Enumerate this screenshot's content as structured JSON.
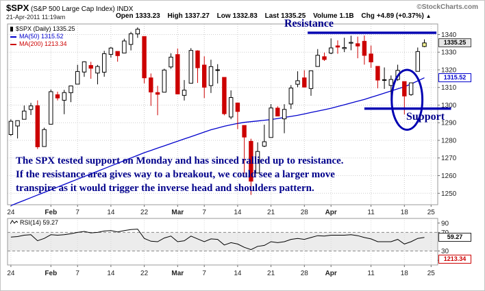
{
  "header": {
    "symbol": "$SPX",
    "description": "(S&P 500 Large Cap Index)",
    "exchange": "INDX",
    "credit": "©StockCharts.com",
    "timestamp": "21-Apr-2011 11:19am"
  },
  "quote": {
    "open_label": "Open",
    "open_value": "1333.23",
    "high_label": "High",
    "high_value": "1337.27",
    "low_label": "Low",
    "low_value": "1332.83",
    "last_label": "Last",
    "last_value": "1335.25",
    "volume_label": "Volume",
    "volume_value": "1.1B",
    "chg_label": "Chg",
    "chg_value": "+4.89 (+0.37%)",
    "chg_arrow": "▲"
  },
  "legend": {
    "spx": "$SPX (Daily) 1335.25",
    "ma50": "MA(50) 1315.52",
    "ma200": "MA(200) 1213.34"
  },
  "rsi_legend": {
    "text": "RSI(14) 59.27"
  },
  "price_labels": {
    "last": "1335.25",
    "ma50": "1315.52",
    "rsi": "59.27",
    "ma200": "1213.34"
  },
  "axes": {
    "price_ticks": [
      1340,
      1330,
      1320,
      1310,
      1300,
      1290,
      1280,
      1270,
      1260,
      1250
    ],
    "rsi_ticks": [
      90,
      70,
      30,
      10
    ],
    "x_ticks": [
      {
        "label": "24",
        "bar": 0,
        "bold": false
      },
      {
        "label": "Feb",
        "bar": 6,
        "bold": true
      },
      {
        "label": "7",
        "bar": 10,
        "bold": false
      },
      {
        "label": "14",
        "bar": 15,
        "bold": false
      },
      {
        "label": "22",
        "bar": 20,
        "bold": false
      },
      {
        "label": "Mar",
        "bar": 25,
        "bold": true
      },
      {
        "label": "7",
        "bar": 29,
        "bold": false
      },
      {
        "label": "14",
        "bar": 34,
        "bold": false
      },
      {
        "label": "21",
        "bar": 39,
        "bold": false
      },
      {
        "label": "28",
        "bar": 44,
        "bold": false
      },
      {
        "label": "Apr",
        "bar": 48,
        "bold": true
      },
      {
        "label": "11",
        "bar": 54,
        "bold": false
      },
      {
        "label": "18",
        "bar": 59,
        "bold": false
      },
      {
        "label": "25",
        "bar": 63,
        "bold": false
      }
    ]
  },
  "annotations": {
    "resistance_label": "Resistance",
    "support_label": "Support",
    "note_lines": [
      "The SPX tested support on Monday and has sinced rallied up to resistance.",
      "If the resistance area gives way to a breakout, we could see a larger move",
      "transpire as it would trigger the inverse head and shoulders pattern."
    ],
    "color": "#00008b",
    "line_color": "#0000b2",
    "resistance_line": {
      "price": 1341,
      "x1_bar": 45,
      "x2_bar": 64.3
    },
    "support_line": {
      "price": 1298,
      "x1_bar": 53.5,
      "x2_bar": 66.5
    },
    "ellipse": {
      "bar": 59.9,
      "price": 1303,
      "rx_bars": 2.3,
      "ry_points": 17
    }
  },
  "chart_data": {
    "type": "candlestick",
    "symbol": "$SPX",
    "timeframe": "Daily",
    "title": "$SPX (S&P 500 Large Cap Index) INDX",
    "price_domain": [
      1243.5,
      1346
    ],
    "x_domain_bars": 64.5,
    "rsi_domain": [
      0,
      100
    ],
    "legend_position": "top-left",
    "grid": true,
    "colors": {
      "up": "#000000",
      "up_fill": "#ffffff",
      "down": "#cc0000",
      "ma50": "#0000cc",
      "ma200": "#cc0000",
      "rsi": "#000000"
    },
    "last_candle_fill": "#ffff99",
    "dates": [
      "Jan 24",
      "Jan 25",
      "Jan 26",
      "Jan 27",
      "Jan 28",
      "Jan 31",
      "Feb 1",
      "Feb 2",
      "Feb 3",
      "Feb 4",
      "Feb 7",
      "Feb 8",
      "Feb 9",
      "Feb 10",
      "Feb 11",
      "Feb 14",
      "Feb 15",
      "Feb 16",
      "Feb 17",
      "Feb 18",
      "Feb 22",
      "Feb 23",
      "Feb 24",
      "Feb 25",
      "Feb 28",
      "Mar 1",
      "Mar 2",
      "Mar 3",
      "Mar 4",
      "Mar 7",
      "Mar 8",
      "Mar 9",
      "Mar 10",
      "Mar 11",
      "Mar 14",
      "Mar 15",
      "Mar 16",
      "Mar 17",
      "Mar 18",
      "Mar 21",
      "Mar 22",
      "Mar 23",
      "Mar 24",
      "Mar 25",
      "Mar 28",
      "Mar 29",
      "Mar 30",
      "Mar 31",
      "Apr 1",
      "Apr 4",
      "Apr 5",
      "Apr 6",
      "Apr 7",
      "Apr 8",
      "Apr 11",
      "Apr 12",
      "Apr 13",
      "Apr 14",
      "Apr 15",
      "Apr 18",
      "Apr 19",
      "Apr 20",
      "Apr 21"
    ],
    "candles": [
      [
        1283.29,
        1291.93,
        1282.47,
        1290.84
      ],
      [
        1288.17,
        1291.26,
        1281.07,
        1291.18
      ],
      [
        1291.97,
        1299.74,
        1291.97,
        1296.63
      ],
      [
        1297.51,
        1301.29,
        1294.41,
        1299.54
      ],
      [
        1299.63,
        1302.67,
        1275.1,
        1276.34
      ],
      [
        1276.5,
        1287.17,
        1276.5,
        1286.12
      ],
      [
        1289.14,
        1308.86,
        1289.14,
        1307.59
      ],
      [
        1305.91,
        1307.61,
        1302.62,
        1304.03
      ],
      [
        1302.77,
        1308.6,
        1294.83,
        1307.1
      ],
      [
        1307.01,
        1311.0,
        1301.67,
        1310.87
      ],
      [
        1311.85,
        1322.85,
        1311.85,
        1319.05
      ],
      [
        1318.76,
        1324.87,
        1316.03,
        1324.57
      ],
      [
        1322.48,
        1324.54,
        1314.89,
        1320.88
      ],
      [
        1318.13,
        1322.78,
        1311.74,
        1321.87
      ],
      [
        1318.66,
        1330.79,
        1316.08,
        1329.15
      ],
      [
        1328.73,
        1332.96,
        1326.9,
        1332.32
      ],
      [
        1330.43,
        1330.43,
        1324.61,
        1328.01
      ],
      [
        1329.51,
        1337.61,
        1329.51,
        1336.32
      ],
      [
        1334.37,
        1341.5,
        1331.0,
        1340.43
      ],
      [
        1340.38,
        1344.07,
        1338.12,
        1343.01
      ],
      [
        1338.91,
        1338.91,
        1312.33,
        1315.44
      ],
      [
        1315.44,
        1317.91,
        1299.55,
        1307.4
      ],
      [
        1307.09,
        1310.94,
        1294.26,
        1306.1
      ],
      [
        1307.34,
        1320.61,
        1307.34,
        1319.88
      ],
      [
        1321.61,
        1329.38,
        1320.55,
        1327.22
      ],
      [
        1328.64,
        1332.09,
        1306.14,
        1306.33
      ],
      [
        1305.47,
        1314.19,
        1302.58,
        1308.44
      ],
      [
        1312.4,
        1332.28,
        1312.4,
        1330.97
      ],
      [
        1330.73,
        1331.08,
        1312.59,
        1321.15
      ],
      [
        1322.72,
        1327.68,
        1303.99,
        1310.13
      ],
      [
        1311.05,
        1325.74,
        1306.86,
        1321.82
      ],
      [
        1319.92,
        1323.21,
        1312.27,
        1320.02
      ],
      [
        1315.72,
        1315.72,
        1294.21,
        1295.11
      ],
      [
        1293.24,
        1308.35,
        1291.99,
        1304.28
      ],
      [
        1301.19,
        1301.19,
        1286.37,
        1296.39
      ],
      [
        1288.46,
        1288.46,
        1261.12,
        1281.87
      ],
      [
        1279.46,
        1280.91,
        1249.05,
        1256.88
      ],
      [
        1261.5,
        1278.88,
        1261.5,
        1273.72
      ],
      [
        1276.71,
        1288.88,
        1276.18,
        1279.21
      ],
      [
        1281.65,
        1300.58,
        1281.65,
        1298.38
      ],
      [
        1298.29,
        1299.35,
        1293.77,
        1293.77
      ],
      [
        1292.19,
        1300.51,
        1284.05,
        1297.54
      ],
      [
        1300.61,
        1311.34,
        1297.74,
        1309.66
      ],
      [
        1311.8,
        1319.18,
        1310.15,
        1313.8
      ],
      [
        1315.45,
        1319.74,
        1310.19,
        1310.19
      ],
      [
        1309.37,
        1319.45,
        1305.26,
        1319.44
      ],
      [
        1321.89,
        1331.74,
        1321.89,
        1328.26
      ],
      [
        1327.44,
        1329.77,
        1325.03,
        1325.83
      ],
      [
        1329.48,
        1337.85,
        1328.89,
        1332.41
      ],
      [
        1333.56,
        1336.74,
        1329.1,
        1332.87
      ],
      [
        1332.03,
        1338.21,
        1330.03,
        1332.63
      ],
      [
        1335.06,
        1339.38,
        1331.09,
        1335.54
      ],
      [
        1334.82,
        1338.8,
        1326.56,
        1333.51
      ],
      [
        1336.16,
        1339.46,
        1322.94,
        1328.17
      ],
      [
        1329.01,
        1333.77,
        1321.06,
        1324.46
      ],
      [
        1321.96,
        1321.96,
        1309.51,
        1314.16
      ],
      [
        1314.03,
        1321.35,
        1309.19,
        1314.41
      ],
      [
        1311.13,
        1316.79,
        1302.42,
        1314.52
      ],
      [
        1314.52,
        1322.88,
        1313.68,
        1319.68
      ],
      [
        1313.35,
        1313.35,
        1294.7,
        1305.14
      ],
      [
        1305.99,
        1312.7,
        1305.26,
        1312.62
      ],
      [
        1319.12,
        1332.66,
        1319.12,
        1330.36
      ],
      [
        1333.23,
        1337.27,
        1332.83,
        1335.25
      ]
    ],
    "ma50": [
      1243.0,
      1244.5,
      1246.0,
      1247.5,
      1249.0,
      1250.5,
      1252.0,
      1253.5,
      1255.0,
      1256.5,
      1258.0,
      1259.5,
      1261.0,
      1262.5,
      1264.0,
      1265.5,
      1267.0,
      1268.5,
      1270.0,
      1271.5,
      1273.0,
      1274.3,
      1275.6,
      1276.9,
      1278.2,
      1279.5,
      1280.8,
      1282.1,
      1283.4,
      1284.7,
      1286.0,
      1287.0,
      1288.0,
      1288.8,
      1289.6,
      1290.2,
      1290.6,
      1291.0,
      1291.4,
      1291.8,
      1292.4,
      1293.0,
      1293.6,
      1294.2,
      1295.0,
      1295.8,
      1296.6,
      1297.4,
      1298.2,
      1299.2,
      1300.2,
      1301.2,
      1302.2,
      1303.2,
      1304.4,
      1305.6,
      1306.8,
      1308.0,
      1309.2,
      1310.4,
      1312.0,
      1313.7,
      1315.5
    ],
    "rsi14": [
      60,
      61,
      64,
      65,
      52,
      57,
      65,
      64,
      65,
      67,
      70,
      72,
      69,
      70,
      73,
      74,
      71,
      74,
      76,
      77,
      57,
      51,
      50,
      58,
      62,
      50,
      52,
      62,
      56,
      50,
      56,
      55,
      43,
      48,
      45,
      38,
      33,
      40,
      42,
      50,
      48,
      50,
      55,
      57,
      55,
      59,
      63,
      62,
      64,
      64,
      64,
      65,
      63,
      59,
      56,
      50,
      50,
      50,
      55,
      45,
      50,
      57,
      59.27
    ],
    "ma50_last": 1315.52,
    "ma200_last": 1213.34,
    "rsi_last": 59.27
  }
}
